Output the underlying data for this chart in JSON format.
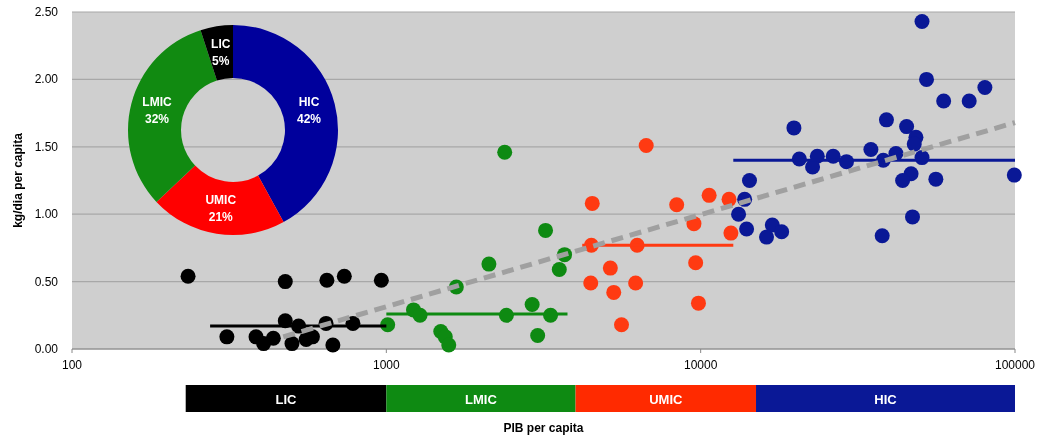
{
  "chart_data": [
    {
      "type": "scatter",
      "ylabel": "kg/dia per capita",
      "log": "x",
      "xlim": [
        100,
        100000
      ],
      "xticks": [
        100,
        1000,
        10000,
        100000
      ],
      "ylim": [
        0,
        2.5
      ],
      "yticks": [
        {
          "value": 0,
          "label": "0.00"
        },
        {
          "value": 0.5,
          "label": "0.50"
        },
        {
          "value": 1,
          "label": "1.00"
        },
        {
          "value": 1.5,
          "label": "1.50"
        },
        {
          "value": 2,
          "label": "2.00"
        },
        {
          "value": 2.5,
          "label": "2.50"
        }
      ],
      "grid": "y",
      "marker": "circle",
      "series": [
        {
          "type": "scatter",
          "color": "#000000",
          "x": [
            234,
            477,
            647,
            735,
            964,
            477,
            526,
            643,
            783,
            311,
            385,
            407,
            437,
            501,
            556,
            582,
            676
          ],
          "values": [
            0.54,
            0.5,
            0.51,
            0.54,
            0.51,
            0.21,
            0.17,
            0.19,
            0.19,
            0.09,
            0.09,
            0.04,
            0.08,
            0.04,
            0.07,
            0.09,
            0.03
          ]
        },
        {
          "type": "scatter",
          "color": "#0e8a12",
          "x": [
            3210,
            3690,
            3550,
            2120,
            1670,
            1010,
            1220,
            1280,
            2410,
            2910,
            3330,
            1490,
            1540,
            1580,
            3030,
            2380
          ],
          "values": [
            0.88,
            0.7,
            0.59,
            0.63,
            0.46,
            0.18,
            0.29,
            0.25,
            0.25,
            0.33,
            0.25,
            0.13,
            0.09,
            0.03,
            0.1,
            1.46
          ]
        },
        {
          "type": "scatter",
          "color": "#ff3a12",
          "x": [
            6710,
            4520,
            8390,
            10640,
            12310,
            9520,
            12480,
            4490,
            6280,
            5160,
            9640,
            4470,
            6210,
            5290,
            9840,
            5600
          ],
          "values": [
            1.51,
            1.08,
            1.07,
            1.14,
            1.11,
            0.93,
            0.86,
            0.77,
            0.77,
            0.6,
            0.64,
            0.49,
            0.49,
            0.42,
            0.34,
            0.18
          ]
        },
        {
          "type": "scatter",
          "color": "#0a1896",
          "x": [
            50600,
            52300,
            59300,
            71500,
            80200,
            19800,
            39000,
            45200,
            48400,
            47800,
            34800,
            41800,
            38100,
            50600,
            20600,
            23500,
            26400,
            29100,
            22700,
            46700,
            43900,
            56000,
            99500,
            47200,
            37800,
            14300,
            13800,
            13200,
            14000,
            16900,
            16200,
            18100
          ],
          "values": [
            2.43,
            2.0,
            1.84,
            1.84,
            1.94,
            1.64,
            1.7,
            1.65,
            1.57,
            1.52,
            1.48,
            1.45,
            1.4,
            1.42,
            1.41,
            1.43,
            1.43,
            1.39,
            1.35,
            1.3,
            1.25,
            1.26,
            1.29,
            0.98,
            0.84,
            1.25,
            1.11,
            1.0,
            0.89,
            0.92,
            0.83,
            0.87
          ]
        },
        {
          "type": "line",
          "color": "#000000",
          "x": [
            275,
            1000
          ],
          "values": [
            0.17,
            0.17
          ],
          "marker": "none"
        },
        {
          "type": "line",
          "color": "#0e8a12",
          "x": [
            1000,
            3770
          ],
          "values": [
            0.26,
            0.26
          ],
          "marker": "none"
        },
        {
          "type": "line",
          "color": "#ff3a12",
          "x": [
            4200,
            12700
          ],
          "values": [
            0.77,
            0.77
          ],
          "marker": "none"
        },
        {
          "type": "line",
          "color": "#0a1896",
          "x": [
            12700,
            100000
          ],
          "values": [
            1.4,
            1.4
          ],
          "marker": "none"
        },
        {
          "type": "line",
          "color": "#a0a0a0",
          "x": [
            470,
            100000
          ],
          "values": [
            0.09,
            1.68
          ],
          "marker": "none",
          "line_style": "dashed"
        }
      ]
    },
    {
      "type": "bar",
      "orientation": "horizontal",
      "xlabel": "PIB per capita",
      "log": "x",
      "xlim": [
        100,
        100000
      ],
      "categories": [
        null
      ],
      "series": [
        {
          "name": "LIC",
          "color": "#000000",
          "values": [
            770
          ],
          "base": [
            230
          ]
        },
        {
          "name": "LMIC",
          "color": "#0e8a12",
          "values": [
            3000
          ],
          "base": [
            1000
          ]
        },
        {
          "name": "UMIC",
          "color": "#ff2a00",
          "values": [
            11000
          ],
          "base": [
            4000
          ]
        },
        {
          "name": "HIC",
          "color": "#0a1896",
          "values": [
            85000
          ],
          "base": [
            15000
          ]
        }
      ]
    },
    {
      "type": "donut",
      "categories": [
        "HIC",
        "UMIC",
        "LMIC",
        "LIC"
      ],
      "values": [
        42,
        21,
        32,
        5
      ],
      "value_labels": [
        "42%",
        "21%",
        "32%",
        "5%"
      ],
      "colors": [
        "#00009c",
        "#ff0000",
        "#118a11",
        "#000000"
      ]
    }
  ]
}
